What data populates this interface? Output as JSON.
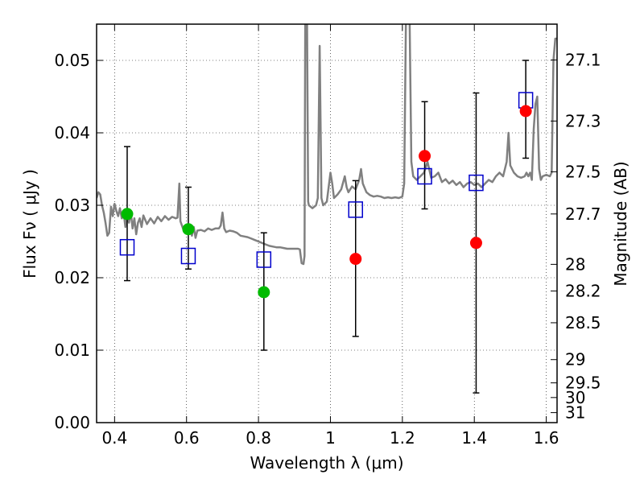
{
  "chart_data": {
    "type": "scatter",
    "title": "",
    "xlabel": "Wavelength  λ (μm)",
    "ylabel": "Flux  Fν  ( μJy )",
    "ylabel_right": "Magnitude (AB)",
    "xlim": [
      0.35,
      1.63
    ],
    "ylim": [
      0.0,
      0.055
    ],
    "grid": true,
    "grid_style": "dotted",
    "x_ticks": [
      0.4,
      0.6,
      0.8,
      1.0,
      1.2,
      1.4,
      1.6
    ],
    "x_tick_labels": [
      "0.4",
      "0.6",
      "0.8",
      "1",
      "1.2",
      "1.4",
      "1.6"
    ],
    "y_ticks": [
      0.0,
      0.01,
      0.02,
      0.03,
      0.04,
      0.05
    ],
    "y_tick_labels": [
      "0.00",
      "0.01",
      "0.02",
      "0.03",
      "0.04",
      "0.05"
    ],
    "right_ticks": [
      {
        "mag": 27.1,
        "label": "27.1"
      },
      {
        "mag": 27.3,
        "label": "27.3"
      },
      {
        "mag": 27.5,
        "label": "27.5"
      },
      {
        "mag": 27.7,
        "label": "27.7"
      },
      {
        "mag": 28.0,
        "label": "28"
      },
      {
        "mag": 28.2,
        "label": "28.2"
      },
      {
        "mag": 28.5,
        "label": "28.5"
      },
      {
        "mag": 29.0,
        "label": "29"
      },
      {
        "mag": 29.5,
        "label": "29.5"
      },
      {
        "mag": 30.0,
        "label": "30"
      },
      {
        "mag": 31.0,
        "label": "31"
      }
    ],
    "series": [
      {
        "kind": "model-spectrum",
        "color": "#808080",
        "points": [
          [
            0.35,
            0.031
          ],
          [
            0.355,
            0.0318
          ],
          [
            0.36,
            0.0315
          ],
          [
            0.365,
            0.03
          ],
          [
            0.37,
            0.029
          ],
          [
            0.375,
            0.0275
          ],
          [
            0.38,
            0.0258
          ],
          [
            0.385,
            0.0262
          ],
          [
            0.39,
            0.0298
          ],
          [
            0.395,
            0.0285
          ],
          [
            0.4,
            0.0302
          ],
          [
            0.405,
            0.0292
          ],
          [
            0.41,
            0.0285
          ],
          [
            0.415,
            0.0296
          ],
          [
            0.42,
            0.0282
          ],
          [
            0.425,
            0.029
          ],
          [
            0.43,
            0.027
          ],
          [
            0.435,
            0.0285
          ],
          [
            0.44,
            0.0276
          ],
          [
            0.445,
            0.029
          ],
          [
            0.45,
            0.0268
          ],
          [
            0.455,
            0.0282
          ],
          [
            0.46,
            0.026
          ],
          [
            0.465,
            0.0276
          ],
          [
            0.47,
            0.0282
          ],
          [
            0.475,
            0.027
          ],
          [
            0.48,
            0.0286
          ],
          [
            0.49,
            0.0274
          ],
          [
            0.5,
            0.0282
          ],
          [
            0.51,
            0.0275
          ],
          [
            0.52,
            0.0284
          ],
          [
            0.53,
            0.0278
          ],
          [
            0.54,
            0.0285
          ],
          [
            0.55,
            0.028
          ],
          [
            0.56,
            0.0284
          ],
          [
            0.57,
            0.0282
          ],
          [
            0.575,
            0.0283
          ],
          [
            0.58,
            0.033
          ],
          [
            0.583,
            0.0278
          ],
          [
            0.59,
            0.0268
          ],
          [
            0.6,
            0.0272
          ],
          [
            0.605,
            0.0266
          ],
          [
            0.61,
            0.0268
          ],
          [
            0.615,
            0.0258
          ],
          [
            0.62,
            0.027
          ],
          [
            0.625,
            0.0255
          ],
          [
            0.63,
            0.0265
          ],
          [
            0.64,
            0.0266
          ],
          [
            0.65,
            0.0264
          ],
          [
            0.66,
            0.0268
          ],
          [
            0.67,
            0.0266
          ],
          [
            0.68,
            0.0268
          ],
          [
            0.69,
            0.0268
          ],
          [
            0.695,
            0.0272
          ],
          [
            0.7,
            0.029
          ],
          [
            0.705,
            0.0268
          ],
          [
            0.71,
            0.0263
          ],
          [
            0.72,
            0.0265
          ],
          [
            0.73,
            0.0264
          ],
          [
            0.74,
            0.0262
          ],
          [
            0.75,
            0.0258
          ],
          [
            0.76,
            0.0257
          ],
          [
            0.77,
            0.0256
          ],
          [
            0.78,
            0.0254
          ],
          [
            0.79,
            0.0252
          ],
          [
            0.8,
            0.025
          ],
          [
            0.81,
            0.0248
          ],
          [
            0.82,
            0.0246
          ],
          [
            0.83,
            0.0244
          ],
          [
            0.84,
            0.0243
          ],
          [
            0.85,
            0.0242
          ],
          [
            0.86,
            0.0242
          ],
          [
            0.87,
            0.0241
          ],
          [
            0.88,
            0.024
          ],
          [
            0.89,
            0.024
          ],
          [
            0.9,
            0.024
          ],
          [
            0.91,
            0.024
          ],
          [
            0.915,
            0.0239
          ],
          [
            0.92,
            0.022
          ],
          [
            0.925,
            0.0219
          ],
          [
            0.928,
            0.023
          ],
          [
            0.93,
            0.056
          ],
          [
            0.935,
            0.056
          ],
          [
            0.938,
            0.0305
          ],
          [
            0.94,
            0.03
          ],
          [
            0.95,
            0.0296
          ],
          [
            0.96,
            0.03
          ],
          [
            0.965,
            0.031
          ],
          [
            0.97,
            0.052
          ],
          [
            0.975,
            0.031
          ],
          [
            0.98,
            0.03
          ],
          [
            0.99,
            0.0305
          ],
          [
            1.0,
            0.0345
          ],
          [
            1.005,
            0.033
          ],
          [
            1.01,
            0.031
          ],
          [
            1.02,
            0.0315
          ],
          [
            1.03,
            0.0322
          ],
          [
            1.04,
            0.034
          ],
          [
            1.045,
            0.0325
          ],
          [
            1.05,
            0.0318
          ],
          [
            1.06,
            0.0326
          ],
          [
            1.07,
            0.0322
          ],
          [
            1.08,
            0.0335
          ],
          [
            1.085,
            0.035
          ],
          [
            1.09,
            0.033
          ],
          [
            1.1,
            0.0318
          ],
          [
            1.11,
            0.0314
          ],
          [
            1.12,
            0.0312
          ],
          [
            1.13,
            0.0313
          ],
          [
            1.14,
            0.0312
          ],
          [
            1.15,
            0.031
          ],
          [
            1.16,
            0.0311
          ],
          [
            1.17,
            0.031
          ],
          [
            1.18,
            0.0311
          ],
          [
            1.19,
            0.031
          ],
          [
            1.2,
            0.0312
          ],
          [
            1.205,
            0.033
          ],
          [
            1.21,
            0.056
          ],
          [
            1.22,
            0.056
          ],
          [
            1.225,
            0.036
          ],
          [
            1.23,
            0.034
          ],
          [
            1.24,
            0.0335
          ],
          [
            1.25,
            0.034
          ],
          [
            1.26,
            0.0345
          ],
          [
            1.27,
            0.036
          ],
          [
            1.28,
            0.0338
          ],
          [
            1.29,
            0.034
          ],
          [
            1.3,
            0.0345
          ],
          [
            1.31,
            0.0332
          ],
          [
            1.32,
            0.0336
          ],
          [
            1.33,
            0.033
          ],
          [
            1.34,
            0.0334
          ],
          [
            1.35,
            0.0328
          ],
          [
            1.36,
            0.0332
          ],
          [
            1.37,
            0.0325
          ],
          [
            1.38,
            0.033
          ],
          [
            1.39,
            0.0332
          ],
          [
            1.4,
            0.0328
          ],
          [
            1.41,
            0.033
          ],
          [
            1.42,
            0.0325
          ],
          [
            1.43,
            0.033
          ],
          [
            1.44,
            0.0335
          ],
          [
            1.45,
            0.0332
          ],
          [
            1.46,
            0.034
          ],
          [
            1.47,
            0.0345
          ],
          [
            1.48,
            0.034
          ],
          [
            1.49,
            0.036
          ],
          [
            1.495,
            0.04
          ],
          [
            1.5,
            0.0355
          ],
          [
            1.51,
            0.0345
          ],
          [
            1.52,
            0.034
          ],
          [
            1.53,
            0.0338
          ],
          [
            1.54,
            0.034
          ],
          [
            1.545,
            0.0345
          ],
          [
            1.55,
            0.034
          ],
          [
            1.555,
            0.0345
          ],
          [
            1.56,
            0.0335
          ],
          [
            1.565,
            0.0405
          ],
          [
            1.57,
            0.044
          ],
          [
            1.575,
            0.045
          ],
          [
            1.58,
            0.035
          ],
          [
            1.585,
            0.0335
          ],
          [
            1.59,
            0.034
          ],
          [
            1.6,
            0.0342
          ],
          [
            1.61,
            0.034
          ],
          [
            1.615,
            0.0345
          ],
          [
            1.62,
            0.05
          ],
          [
            1.625,
            0.053
          ],
          [
            1.63,
            0.053
          ]
        ]
      },
      {
        "kind": "model-fluxes",
        "marker": "open-square",
        "color": "#0000cc",
        "x": [
          0.435,
          0.605,
          0.815,
          1.07,
          1.262,
          1.405,
          1.543
        ],
        "y": [
          0.0242,
          0.023,
          0.0225,
          0.0294,
          0.034,
          0.0331,
          0.0445
        ]
      },
      {
        "kind": "observed-optical",
        "marker": "filled-circle",
        "color": "#00bb00",
        "x": [
          0.435,
          0.605,
          0.815
        ],
        "y": [
          0.0288,
          0.0267,
          0.018
        ]
      },
      {
        "kind": "observed-nir",
        "marker": "filled-circle",
        "color": "#ff0000",
        "x": [
          1.07,
          1.262,
          1.405,
          1.543
        ],
        "y": [
          0.0226,
          0.0368,
          0.0248,
          0.043
        ]
      }
    ],
    "error_bars": [
      {
        "x": 0.435,
        "low": 0.0196,
        "high": 0.0381
      },
      {
        "x": 0.605,
        "low": 0.0212,
        "high": 0.0325
      },
      {
        "x": 0.815,
        "low": 0.01,
        "high": 0.0262
      },
      {
        "x": 1.07,
        "low": 0.0119,
        "high": 0.0334
      },
      {
        "x": 1.262,
        "low": 0.0295,
        "high": 0.0443
      },
      {
        "x": 1.405,
        "low": 0.0041,
        "high": 0.0455
      },
      {
        "x": 1.543,
        "low": 0.0365,
        "high": 0.05
      }
    ]
  }
}
